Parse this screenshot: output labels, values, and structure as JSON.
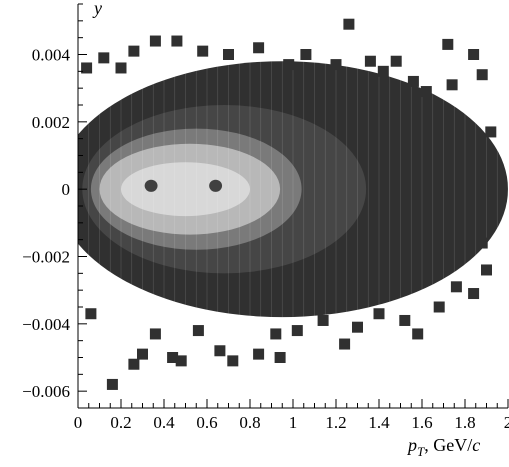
{
  "chart_data": {
    "type": "heatmap",
    "title": "",
    "xlabel": "p_T, GeV/c",
    "xlabel_parts": {
      "symbol": "p",
      "subscript": "T",
      "unit_prefix": ", GeV/",
      "unit_italic": "c"
    },
    "ylabel": "y",
    "xlim": [
      0,
      2
    ],
    "ylim": [
      -0.0065,
      0.0055
    ],
    "x_ticks": [
      0,
      0.2,
      0.4,
      0.6,
      0.8,
      1,
      1.2,
      1.4,
      1.6,
      1.8,
      2
    ],
    "x_tick_labels": [
      "0",
      "0.2",
      "0.4",
      "0.6",
      "0.8",
      "1",
      "1.2",
      "1.4",
      "1.6",
      "1.8",
      "2"
    ],
    "y_ticks": [
      0.004,
      0.002,
      0,
      -0.002,
      -0.004,
      -0.006
    ],
    "y_tick_labels": [
      "0.004",
      "0.002",
      "0",
      "−0.002",
      "−0.004",
      "−0.006"
    ],
    "grid": false,
    "colormap": "grayscale",
    "colors": {
      "level1": "#303030",
      "level2": "#464646",
      "level3": "#7a7a7a",
      "level4": "#b8b8b8",
      "level5": "#d8d8d8",
      "hole": "#404040"
    },
    "density_regions": [
      {
        "level": 1,
        "shape": "ellipse",
        "cx": 0.95,
        "cy": 0.0,
        "rx": 1.05,
        "ry": 0.0038
      },
      {
        "level": 2,
        "shape": "ellipse",
        "cx": 0.68,
        "cy": 0.0,
        "rx": 0.66,
        "ry": 0.0025
      },
      {
        "level": 3,
        "shape": "ellipse",
        "cx": 0.55,
        "cy": 0.0,
        "rx": 0.49,
        "ry": 0.0018
      },
      {
        "level": 4,
        "shape": "ellipse",
        "cx": 0.52,
        "cy": 0.0,
        "rx": 0.42,
        "ry": 0.00135
      },
      {
        "level": 5,
        "shape": "ellipse",
        "cx": 0.5,
        "cy": 0.0,
        "rx": 0.3,
        "ry": 0.0008
      }
    ],
    "low_density_holes": [
      {
        "x": 0.34,
        "y": 0.0001,
        "rx": 0.03,
        "ry": 0.00018
      },
      {
        "x": 0.64,
        "y": 0.0001,
        "rx": 0.03,
        "ry": 0.00018
      }
    ],
    "isolated_cells": [
      [
        0.16,
        -0.0058
      ],
      [
        0.26,
        -0.0052
      ],
      [
        0.3,
        -0.0049
      ],
      [
        0.44,
        -0.005
      ],
      [
        0.48,
        -0.0051
      ],
      [
        0.66,
        -0.0048
      ],
      [
        0.72,
        -0.0051
      ],
      [
        0.84,
        -0.0049
      ],
      [
        0.94,
        -0.005
      ],
      [
        1.24,
        -0.0046
      ],
      [
        1.58,
        -0.0043
      ],
      [
        1.26,
        0.0049
      ],
      [
        1.72,
        0.0043
      ],
      [
        1.84,
        0.004
      ],
      [
        1.88,
        0.0034
      ],
      [
        0.46,
        0.0044
      ],
      [
        0.36,
        0.0044
      ],
      [
        0.12,
        0.0039
      ],
      [
        1.48,
        0.0038
      ],
      [
        1.92,
        0.0017
      ],
      [
        1.88,
        -0.0016
      ],
      [
        1.9,
        -0.0024
      ],
      [
        1.76,
        -0.0029
      ],
      [
        1.84,
        -0.0031
      ],
      [
        1.68,
        -0.0035
      ],
      [
        1.52,
        -0.0039
      ],
      [
        1.4,
        -0.0037
      ],
      [
        1.3,
        -0.0041
      ],
      [
        1.14,
        -0.0039
      ],
      [
        1.02,
        -0.0042
      ],
      [
        0.92,
        -0.0043
      ],
      [
        0.56,
        -0.0042
      ],
      [
        0.36,
        -0.0043
      ],
      [
        0.06,
        -0.0037
      ],
      [
        1.74,
        0.0031
      ],
      [
        1.62,
        0.0029
      ],
      [
        1.56,
        0.0032
      ],
      [
        1.42,
        0.0035
      ],
      [
        1.36,
        0.0038
      ],
      [
        1.2,
        0.0037
      ],
      [
        1.06,
        0.004
      ],
      [
        0.98,
        0.0037
      ],
      [
        0.84,
        0.0042
      ],
      [
        0.7,
        0.004
      ],
      [
        0.58,
        0.0041
      ],
      [
        0.26,
        0.0041
      ],
      [
        0.2,
        0.0036
      ],
      [
        0.04,
        0.0036
      ]
    ]
  }
}
